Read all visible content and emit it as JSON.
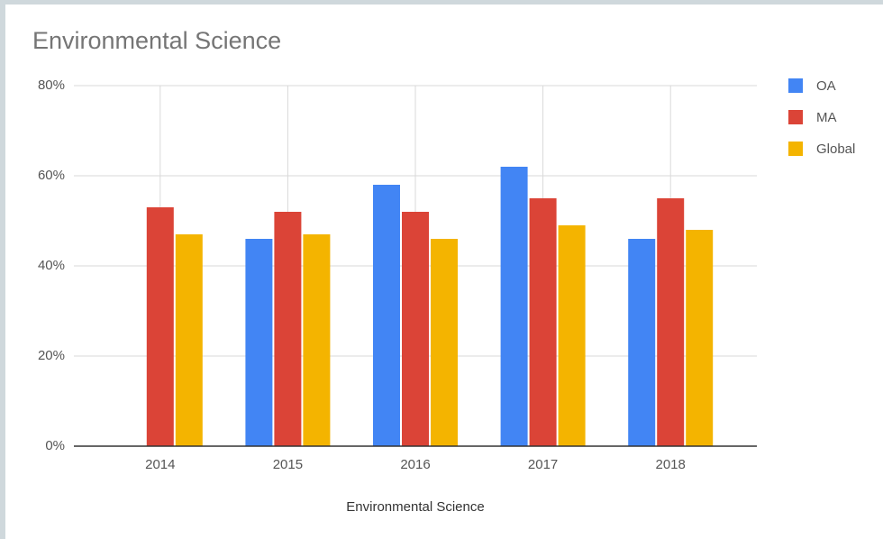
{
  "chart_data": {
    "type": "bar",
    "title": "Environmental Science",
    "x_label": "Environmental Science",
    "categories": [
      "2014",
      "2015",
      "2016",
      "2017",
      "2018"
    ],
    "series": [
      {
        "name": "OA",
        "color": "#4285f4",
        "values": [
          null,
          46,
          58,
          62,
          46
        ]
      },
      {
        "name": "MA",
        "color": "#db4437",
        "values": [
          53,
          52,
          52,
          55,
          55
        ]
      },
      {
        "name": "Global",
        "color": "#f4b400",
        "values": [
          47,
          47,
          46,
          49,
          48
        ]
      }
    ],
    "ylim": [
      0,
      80
    ],
    "yticks": [
      {
        "value": 0,
        "label": "0%"
      },
      {
        "value": 20,
        "label": "20%"
      },
      {
        "value": 40,
        "label": "40%"
      },
      {
        "value": 60,
        "label": "60%"
      },
      {
        "value": 80,
        "label": "80%"
      }
    ],
    "grid": true,
    "legend": "right"
  }
}
